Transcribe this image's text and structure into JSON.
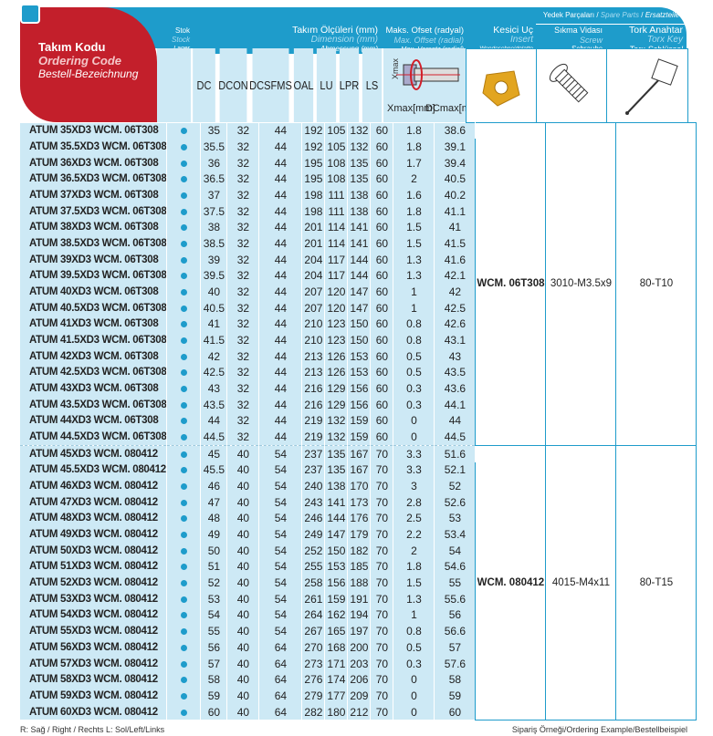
{
  "header": {
    "code": {
      "tr": "Takım Kodu",
      "en": "Ordering Code",
      "de": "Bestell-Bezeichnung"
    },
    "stock": {
      "tr": "Stok",
      "en": "Stock",
      "de": "Lager"
    },
    "dimension": {
      "tr": "Takım Ölçüleri (mm)",
      "en": "Dimension (mm)",
      "de": "Abmessung (mm)"
    },
    "offset": {
      "tr": "Maks. Ofset (radyal)",
      "en": "Max. Offset (radial)",
      "de": "Max. Versatz (radial)"
    },
    "insert": {
      "tr": "Kesici Uç",
      "en": "Insert",
      "de": "Wendeschneidplatte"
    },
    "spare_parts": {
      "tr": "Yedek Parçaları",
      "en": "Spare Parts",
      "de": "Ersatzteile"
    },
    "screw": {
      "tr": "Sıkma Vidası",
      "en": "Screw",
      "de": "Schraube"
    },
    "key": {
      "tr": "Tork Anahtar",
      "en": "Torx Key",
      "de": "Torx-Schlüssel"
    },
    "columns": [
      "DC",
      "DCON",
      "DCSFMS",
      "OAL",
      "LU",
      "LPR",
      "LS"
    ],
    "xmax_label": "Xmax[mm]",
    "dcmax_label": "DCmax[mm]",
    "xmax_axis": "Xmax"
  },
  "rows": [
    [
      "ATUM 35XD3 WCM. 06T308",
      "35",
      "32",
      "44",
      "192",
      "105",
      "132",
      "60",
      "1.8",
      "38.6"
    ],
    [
      "ATUM 35.5XD3 WCM. 06T308",
      "35.5",
      "32",
      "44",
      "192",
      "105",
      "132",
      "60",
      "1.8",
      "39.1"
    ],
    [
      "ATUM 36XD3 WCM. 06T308",
      "36",
      "32",
      "44",
      "195",
      "108",
      "135",
      "60",
      "1.7",
      "39.4"
    ],
    [
      "ATUM 36.5XD3 WCM. 06T308",
      "36.5",
      "32",
      "44",
      "195",
      "108",
      "135",
      "60",
      "2",
      "40.5"
    ],
    [
      "ATUM 37XD3 WCM. 06T308",
      "37",
      "32",
      "44",
      "198",
      "111",
      "138",
      "60",
      "1.6",
      "40.2"
    ],
    [
      "ATUM 37.5XD3 WCM. 06T308",
      "37.5",
      "32",
      "44",
      "198",
      "111",
      "138",
      "60",
      "1.8",
      "41.1"
    ],
    [
      "ATUM 38XD3 WCM. 06T308",
      "38",
      "32",
      "44",
      "201",
      "114",
      "141",
      "60",
      "1.5",
      "41"
    ],
    [
      "ATUM 38.5XD3 WCM. 06T308",
      "38.5",
      "32",
      "44",
      "201",
      "114",
      "141",
      "60",
      "1.5",
      "41.5"
    ],
    [
      "ATUM 39XD3 WCM. 06T308",
      "39",
      "32",
      "44",
      "204",
      "117",
      "144",
      "60",
      "1.3",
      "41.6"
    ],
    [
      "ATUM 39.5XD3 WCM. 06T308",
      "39.5",
      "32",
      "44",
      "204",
      "117",
      "144",
      "60",
      "1.3",
      "42.1"
    ],
    [
      "ATUM 40XD3 WCM. 06T308",
      "40",
      "32",
      "44",
      "207",
      "120",
      "147",
      "60",
      "1",
      "42"
    ],
    [
      "ATUM 40.5XD3 WCM. 06T308",
      "40.5",
      "32",
      "44",
      "207",
      "120",
      "147",
      "60",
      "1",
      "42.5"
    ],
    [
      "ATUM 41XD3 WCM. 06T308",
      "41",
      "32",
      "44",
      "210",
      "123",
      "150",
      "60",
      "0.8",
      "42.6"
    ],
    [
      "ATUM 41.5XD3 WCM. 06T308",
      "41.5",
      "32",
      "44",
      "210",
      "123",
      "150",
      "60",
      "0.8",
      "43.1"
    ],
    [
      "ATUM 42XD3 WCM. 06T308",
      "42",
      "32",
      "44",
      "213",
      "126",
      "153",
      "60",
      "0.5",
      "43"
    ],
    [
      "ATUM 42.5XD3 WCM. 06T308",
      "42.5",
      "32",
      "44",
      "213",
      "126",
      "153",
      "60",
      "0.5",
      "43.5"
    ],
    [
      "ATUM 43XD3 WCM. 06T308",
      "43",
      "32",
      "44",
      "216",
      "129",
      "156",
      "60",
      "0.3",
      "43.6"
    ],
    [
      "ATUM 43.5XD3 WCM. 06T308",
      "43.5",
      "32",
      "44",
      "216",
      "129",
      "156",
      "60",
      "0.3",
      "44.1"
    ],
    [
      "ATUM 44XD3 WCM. 06T308",
      "44",
      "32",
      "44",
      "219",
      "132",
      "159",
      "60",
      "0",
      "44"
    ],
    [
      "ATUM 44.5XD3 WCM. 06T308",
      "44.5",
      "32",
      "44",
      "219",
      "132",
      "159",
      "60",
      "0",
      "44.5"
    ],
    [
      "ATUM 45XD3 WCM. 080412",
      "45",
      "40",
      "54",
      "237",
      "135",
      "167",
      "70",
      "3.3",
      "51.6"
    ],
    [
      "ATUM 45.5XD3 WCM. 080412",
      "45.5",
      "40",
      "54",
      "237",
      "135",
      "167",
      "70",
      "3.3",
      "52.1"
    ],
    [
      "ATUM 46XD3 WCM. 080412",
      "46",
      "40",
      "54",
      "240",
      "138",
      "170",
      "70",
      "3",
      "52"
    ],
    [
      "ATUM 47XD3 WCM. 080412",
      "47",
      "40",
      "54",
      "243",
      "141",
      "173",
      "70",
      "2.8",
      "52.6"
    ],
    [
      "ATUM 48XD3 WCM. 080412",
      "48",
      "40",
      "54",
      "246",
      "144",
      "176",
      "70",
      "2.5",
      "53"
    ],
    [
      "ATUM 49XD3 WCM. 080412",
      "49",
      "40",
      "54",
      "249",
      "147",
      "179",
      "70",
      "2.2",
      "53.4"
    ],
    [
      "ATUM 50XD3 WCM. 080412",
      "50",
      "40",
      "54",
      "252",
      "150",
      "182",
      "70",
      "2",
      "54"
    ],
    [
      "ATUM 51XD3 WCM. 080412",
      "51",
      "40",
      "54",
      "255",
      "153",
      "185",
      "70",
      "1.8",
      "54.6"
    ],
    [
      "ATUM 52XD3 WCM. 080412",
      "52",
      "40",
      "54",
      "258",
      "156",
      "188",
      "70",
      "1.5",
      "55"
    ],
    [
      "ATUM 53XD3 WCM. 080412",
      "53",
      "40",
      "54",
      "261",
      "159",
      "191",
      "70",
      "1.3",
      "55.6"
    ],
    [
      "ATUM 54XD3 WCM. 080412",
      "54",
      "40",
      "54",
      "264",
      "162",
      "194",
      "70",
      "1",
      "56"
    ],
    [
      "ATUM 55XD3 WCM. 080412",
      "55",
      "40",
      "54",
      "267",
      "165",
      "197",
      "70",
      "0.8",
      "56.6"
    ],
    [
      "ATUM 56XD3 WCM. 080412",
      "56",
      "40",
      "64",
      "270",
      "168",
      "200",
      "70",
      "0.5",
      "57"
    ],
    [
      "ATUM 57XD3 WCM. 080412",
      "57",
      "40",
      "64",
      "273",
      "171",
      "203",
      "70",
      "0.3",
      "57.6"
    ],
    [
      "ATUM 58XD3 WCM. 080412",
      "58",
      "40",
      "64",
      "276",
      "174",
      "206",
      "70",
      "0",
      "58"
    ],
    [
      "ATUM 59XD3 WCM. 080412",
      "59",
      "40",
      "64",
      "279",
      "177",
      "209",
      "70",
      "0",
      "59"
    ],
    [
      "ATUM 60XD3 WCM. 080412",
      "60",
      "40",
      "64",
      "282",
      "180",
      "212",
      "70",
      "0",
      "60"
    ]
  ],
  "groups": [
    {
      "rows": 20,
      "insert": "WCM. 06T308",
      "screw": "3010-M3.5x9",
      "key": "80-T10"
    },
    {
      "rows": 17,
      "insert": "WCM. 080412",
      "screw": "4015-M4x11",
      "key": "80-T15"
    }
  ],
  "stock_color": "#1e9ccb",
  "footer": {
    "left": "R: Sağ / Right / Rechts   L: Sol/Left/Links",
    "right": "Sipariş Örneği/Ordering Example/Bestellbeispiel"
  }
}
